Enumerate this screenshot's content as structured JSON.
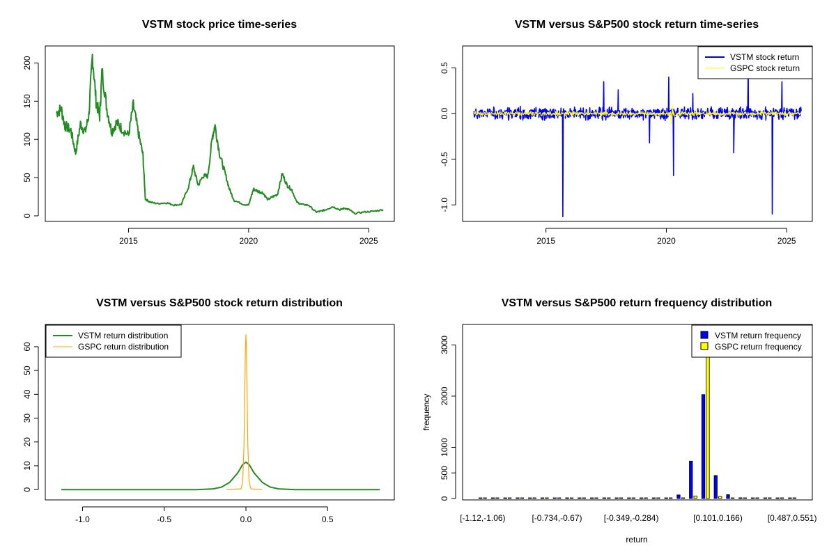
{
  "colors": {
    "vstm_price": "#228b22",
    "vstm_return": "#0000ff",
    "gspc_return": "#ffff00",
    "vstm_density": "#228b22",
    "gspc_density": "#ffa500",
    "vstm_bar": "#0000ff",
    "gspc_bar": "#ffff00"
  },
  "chart_data": [
    {
      "id": "price",
      "type": "line",
      "title": "VSTM stock price time-series",
      "xlabel": "",
      "ylabel": "",
      "xlim": [
        2012.0,
        2025.6
      ],
      "ylim": [
        0,
        215
      ],
      "xticks": [
        2015,
        2020,
        2025
      ],
      "xtick_labels": [
        "2015",
        "2020",
        "2025"
      ],
      "yticks": [
        0,
        50,
        100,
        150,
        200
      ],
      "ytick_labels": [
        "0",
        "50",
        "100",
        "150",
        "200"
      ],
      "series": [
        {
          "name": "VSTM price",
          "color_key": "vstm_price",
          "points": [
            [
              2012.0,
              135
            ],
            [
              2012.2,
              140
            ],
            [
              2012.35,
              118
            ],
            [
              2012.6,
              112
            ],
            [
              2012.8,
              82
            ],
            [
              2013.0,
              120
            ],
            [
              2013.2,
              110
            ],
            [
              2013.35,
              132
            ],
            [
              2013.5,
              210
            ],
            [
              2013.65,
              150
            ],
            [
              2013.8,
              130
            ],
            [
              2013.9,
              190
            ],
            [
              2014.1,
              140
            ],
            [
              2014.3,
              110
            ],
            [
              2014.5,
              122
            ],
            [
              2014.7,
              115
            ],
            [
              2015.0,
              105
            ],
            [
              2015.2,
              145
            ],
            [
              2015.4,
              110
            ],
            [
              2015.6,
              80
            ],
            [
              2015.7,
              22
            ],
            [
              2015.9,
              18
            ],
            [
              2016.2,
              16
            ],
            [
              2016.6,
              17
            ],
            [
              2016.9,
              14
            ],
            [
              2017.2,
              15
            ],
            [
              2017.5,
              38
            ],
            [
              2017.7,
              64
            ],
            [
              2017.9,
              40
            ],
            [
              2018.1,
              52
            ],
            [
              2018.3,
              52
            ],
            [
              2018.5,
              105
            ],
            [
              2018.6,
              118
            ],
            [
              2018.8,
              80
            ],
            [
              2019.0,
              58
            ],
            [
              2019.2,
              35
            ],
            [
              2019.4,
              20
            ],
            [
              2019.8,
              15
            ],
            [
              2020.0,
              14
            ],
            [
              2020.2,
              35
            ],
            [
              2020.4,
              32
            ],
            [
              2020.6,
              30
            ],
            [
              2020.8,
              21
            ],
            [
              2021.0,
              25
            ],
            [
              2021.2,
              28
            ],
            [
              2021.4,
              55
            ],
            [
              2021.6,
              40
            ],
            [
              2021.8,
              34
            ],
            [
              2022.0,
              18
            ],
            [
              2022.2,
              15
            ],
            [
              2022.5,
              14
            ],
            [
              2022.8,
              5
            ],
            [
              2023.0,
              6
            ],
            [
              2023.2,
              8
            ],
            [
              2023.5,
              12
            ],
            [
              2023.8,
              8
            ],
            [
              2024.0,
              10
            ],
            [
              2024.2,
              8
            ],
            [
              2024.4,
              3
            ],
            [
              2024.8,
              5
            ],
            [
              2025.2,
              6
            ],
            [
              2025.6,
              8
            ]
          ]
        }
      ]
    },
    {
      "id": "returns",
      "type": "line",
      "title": "VSTM versus S&P500 stock return time-series",
      "xlabel": "",
      "ylabel": "",
      "xlim": [
        2012.0,
        2025.6
      ],
      "ylim": [
        -1.12,
        0.68
      ],
      "xticks": [
        2015,
        2020,
        2025
      ],
      "xtick_labels": [
        "2015",
        "2020",
        "2025"
      ],
      "yticks": [
        -1.0,
        -0.5,
        0.0,
        0.5
      ],
      "ytick_labels": [
        "-1.0",
        "-0.5",
        "0.0",
        "0.5"
      ],
      "legend": {
        "position": "top-right",
        "entries": [
          {
            "label": "VSTM stock return",
            "color_key": "vstm_return"
          },
          {
            "label": "GSPC stock return",
            "color_key": "gspc_return"
          }
        ]
      },
      "series": [
        {
          "name": "VSTM stock return",
          "color_key": "vstm_return",
          "band": [
            -0.06,
            0.06
          ],
          "spikes": [
            [
              2015.7,
              -1.13
            ],
            [
              2017.4,
              0.35
            ],
            [
              2018.0,
              0.26
            ],
            [
              2019.3,
              -0.32
            ],
            [
              2020.1,
              0.4
            ],
            [
              2020.3,
              -0.68
            ],
            [
              2021.1,
              0.22
            ],
            [
              2022.8,
              -0.43
            ],
            [
              2023.4,
              0.53
            ],
            [
              2024.4,
              -1.1
            ],
            [
              2024.8,
              0.35
            ]
          ]
        },
        {
          "name": "GSPC stock return",
          "color_key": "gspc_return",
          "band": [
            -0.02,
            0.02
          ],
          "spikes": [
            [
              2020.2,
              -0.12
            ],
            [
              2020.25,
              0.09
            ]
          ]
        }
      ]
    },
    {
      "id": "density",
      "type": "line",
      "title": "VSTM versus S&P500 stock return distribution",
      "xlabel": "",
      "ylabel": "",
      "xlim": [
        -1.16,
        0.84
      ],
      "ylim": [
        -2,
        67
      ],
      "xticks": [
        -1.0,
        -0.5,
        0.0,
        0.5
      ],
      "xtick_labels": [
        "-1.0",
        "-0.5",
        "0.0",
        "0.5"
      ],
      "yticks": [
        0,
        10,
        20,
        30,
        40,
        50,
        60
      ],
      "ytick_labels": [
        "0",
        "10",
        "20",
        "30",
        "40",
        "50",
        "60"
      ],
      "legend": {
        "position": "top-left",
        "entries": [
          {
            "label": "VSTM return distribution",
            "color_key": "vstm_density"
          },
          {
            "label": "GSPC return distribution",
            "color_key": "gspc_density"
          }
        ]
      },
      "series": [
        {
          "name": "VSTM return distribution",
          "color_key": "vstm_density",
          "points": [
            [
              -1.13,
              0
            ],
            [
              -0.3,
              0
            ],
            [
              -0.2,
              0.3
            ],
            [
              -0.15,
              1
            ],
            [
              -0.1,
              3
            ],
            [
              -0.05,
              7
            ],
            [
              -0.02,
              10.5
            ],
            [
              0.0,
              11.5
            ],
            [
              0.02,
              10.5
            ],
            [
              0.05,
              7
            ],
            [
              0.1,
              3
            ],
            [
              0.15,
              1
            ],
            [
              0.2,
              0.3
            ],
            [
              0.3,
              0
            ],
            [
              0.82,
              0
            ]
          ]
        },
        {
          "name": "GSPC return distribution",
          "color_key": "gspc_density",
          "points": [
            [
              -0.12,
              0
            ],
            [
              -0.03,
              0.3
            ],
            [
              -0.02,
              3
            ],
            [
              -0.012,
              18
            ],
            [
              -0.006,
              45
            ],
            [
              -0.003,
              60
            ],
            [
              0.0,
              65
            ],
            [
              0.003,
              60
            ],
            [
              0.006,
              45
            ],
            [
              0.012,
              18
            ],
            [
              0.02,
              3
            ],
            [
              0.03,
              0.3
            ],
            [
              0.1,
              0
            ]
          ]
        }
      ]
    },
    {
      "id": "freq",
      "type": "bar",
      "title": "VSTM versus S&P500 return frequency distribution",
      "xlabel": "return",
      "ylabel": "frequency",
      "ylim": [
        0,
        3400
      ],
      "yticks": [
        0,
        500,
        1000,
        2000,
        3000
      ],
      "ytick_labels": [
        "0",
        "500",
        "1000",
        "2000",
        "3000"
      ],
      "bin_count": 26,
      "xtick_labels": [
        {
          "label": "[-1.12,-1.06)",
          "bin": 1
        },
        {
          "label": "[-0.734,-0.67)",
          "bin": 7
        },
        {
          "label": "[-0.349,-0.284)",
          "bin": 13
        },
        {
          "label": "[0.101,0.166)",
          "bin": 20
        },
        {
          "label": "[0.487,0.551)",
          "bin": 26
        }
      ],
      "legend": {
        "position": "top-right",
        "entries": [
          {
            "label": "VSTM return frequency",
            "color_key": "vstm_bar"
          },
          {
            "label": "GSPC return frequency",
            "color_key": "gspc_bar"
          }
        ]
      },
      "series": [
        {
          "name": "VSTM return frequency",
          "color_key": "vstm_bar",
          "values": [
            2,
            0,
            0,
            0,
            0,
            0,
            0,
            0,
            0,
            0,
            1,
            0,
            0,
            2,
            4,
            10,
            70,
            730,
            2030,
            450,
            75,
            15,
            8,
            3,
            1,
            1
          ]
        },
        {
          "name": "GSPC return frequency",
          "color_key": "gspc_bar",
          "values": [
            0,
            0,
            0,
            0,
            0,
            0,
            0,
            0,
            0,
            0,
            0,
            0,
            0,
            0,
            0,
            0,
            0,
            50,
            3400,
            40,
            0,
            0,
            0,
            0,
            0,
            0
          ]
        }
      ]
    }
  ]
}
